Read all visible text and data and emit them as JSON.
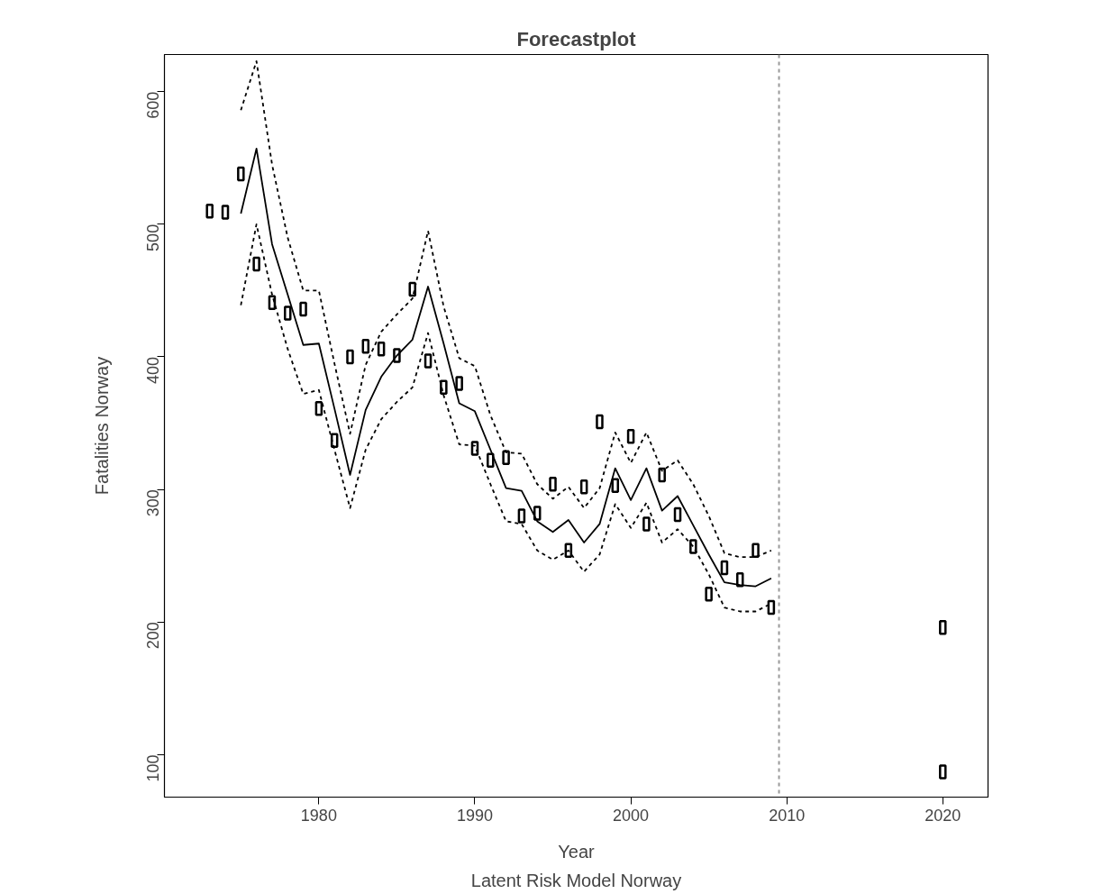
{
  "chart_data": {
    "type": "line",
    "title": "Forecastplot",
    "subtitle": "Latent Risk Model Norway",
    "xlabel": "Year",
    "ylabel": "Fatalities Norway",
    "xlim": [
      1970.1,
      2022.9
    ],
    "ylim": [
      68,
      628
    ],
    "xticks": [
      1980,
      1990,
      2000,
      2010,
      2020
    ],
    "yticks": [
      100,
      200,
      300,
      400,
      500,
      600
    ],
    "grid": false,
    "series": [
      {
        "type": "scatter",
        "marker": "square",
        "color": "#000000",
        "x": [
          1973,
          1974,
          1975,
          1976,
          1977,
          1978,
          1979,
          1980,
          1981,
          1982,
          1983,
          1984,
          1985,
          1986,
          1987,
          1988,
          1989,
          1990,
          1991,
          1992,
          1993,
          1994,
          1995,
          1996,
          1997,
          1998,
          1999,
          2000,
          2001,
          2002,
          2003,
          2004,
          2005,
          2006,
          2007,
          2008,
          2009
        ],
        "values": [
          510,
          509,
          538,
          470,
          441,
          433,
          436,
          361,
          337,
          400,
          408,
          406,
          401,
          451,
          397,
          377,
          380,
          331,
          322,
          324,
          280,
          282,
          304,
          254,
          302,
          351,
          303,
          340,
          274,
          311,
          281,
          257,
          221,
          241,
          232,
          254,
          211
        ]
      },
      {
        "type": "scatter",
        "marker": "square",
        "color": "#000000",
        "x": [
          2020,
          2020
        ],
        "values": [
          196,
          87
        ]
      },
      {
        "line_style": "solid",
        "color": "#000000",
        "x": [
          1975,
          1976,
          1977,
          1978,
          1979,
          1980,
          1981,
          1982,
          1983,
          1984,
          1985,
          1986,
          1987,
          1988,
          1989,
          1990,
          1991,
          1992,
          1993,
          1994,
          1995,
          1996,
          1997,
          1998,
          1999,
          2000,
          2001,
          2002,
          2003,
          2004,
          2005,
          2006,
          2007,
          2008,
          2009
        ],
        "values": [
          508,
          557,
          485,
          447,
          409,
          410,
          361,
          311,
          360,
          385,
          401,
          413,
          453,
          410,
          365,
          359,
          330,
          301,
          299,
          276,
          268,
          277,
          260,
          274,
          316,
          292,
          316,
          284,
          295,
          273,
          251,
          230,
          228,
          227,
          233
        ]
      },
      {
        "type": "line",
        "line_style": "dashed",
        "color": "#000000",
        "x": [
          1975,
          1976,
          1977,
          1978,
          1979,
          1980,
          1981,
          1982,
          1983,
          1984,
          1985,
          1986,
          1987,
          1988,
          1989,
          1990,
          1991,
          1992,
          1993,
          1994,
          1995,
          1996,
          1997,
          1998,
          1999,
          2000,
          2001,
          2002,
          2003,
          2004,
          2005,
          2006,
          2007,
          2008,
          2009
        ],
        "values": [
          586,
          623,
          545,
          490,
          450,
          450,
          395,
          342,
          394,
          419,
          432,
          444,
          495,
          438,
          399,
          393,
          356,
          328,
          327,
          304,
          293,
          302,
          286,
          301,
          343,
          320,
          343,
          314,
          322,
          304,
          280,
          252,
          249,
          249,
          254
        ]
      },
      {
        "type": "line",
        "line_style": "dashed",
        "color": "#000000",
        "x": [
          1975,
          1976,
          1977,
          1978,
          1979,
          1980,
          1981,
          1982,
          1983,
          1984,
          1985,
          1986,
          1987,
          1988,
          1989,
          1990,
          1991,
          1992,
          1993,
          1994,
          1995,
          1996,
          1997,
          1998,
          1999,
          2000,
          2001,
          2002,
          2003,
          2004,
          2005,
          2006,
          2007,
          2008,
          2009
        ],
        "values": [
          439,
          500,
          447,
          406,
          372,
          375,
          330,
          286,
          330,
          353,
          366,
          377,
          418,
          371,
          334,
          333,
          304,
          276,
          274,
          254,
          247,
          254,
          238,
          251,
          289,
          271,
          290,
          260,
          270,
          257,
          236,
          211,
          208,
          208,
          214
        ]
      }
    ],
    "ref_lines": [
      {
        "axis": "x",
        "value": 2009.5,
        "color": "#999999",
        "line_style": "dashed"
      }
    ]
  }
}
